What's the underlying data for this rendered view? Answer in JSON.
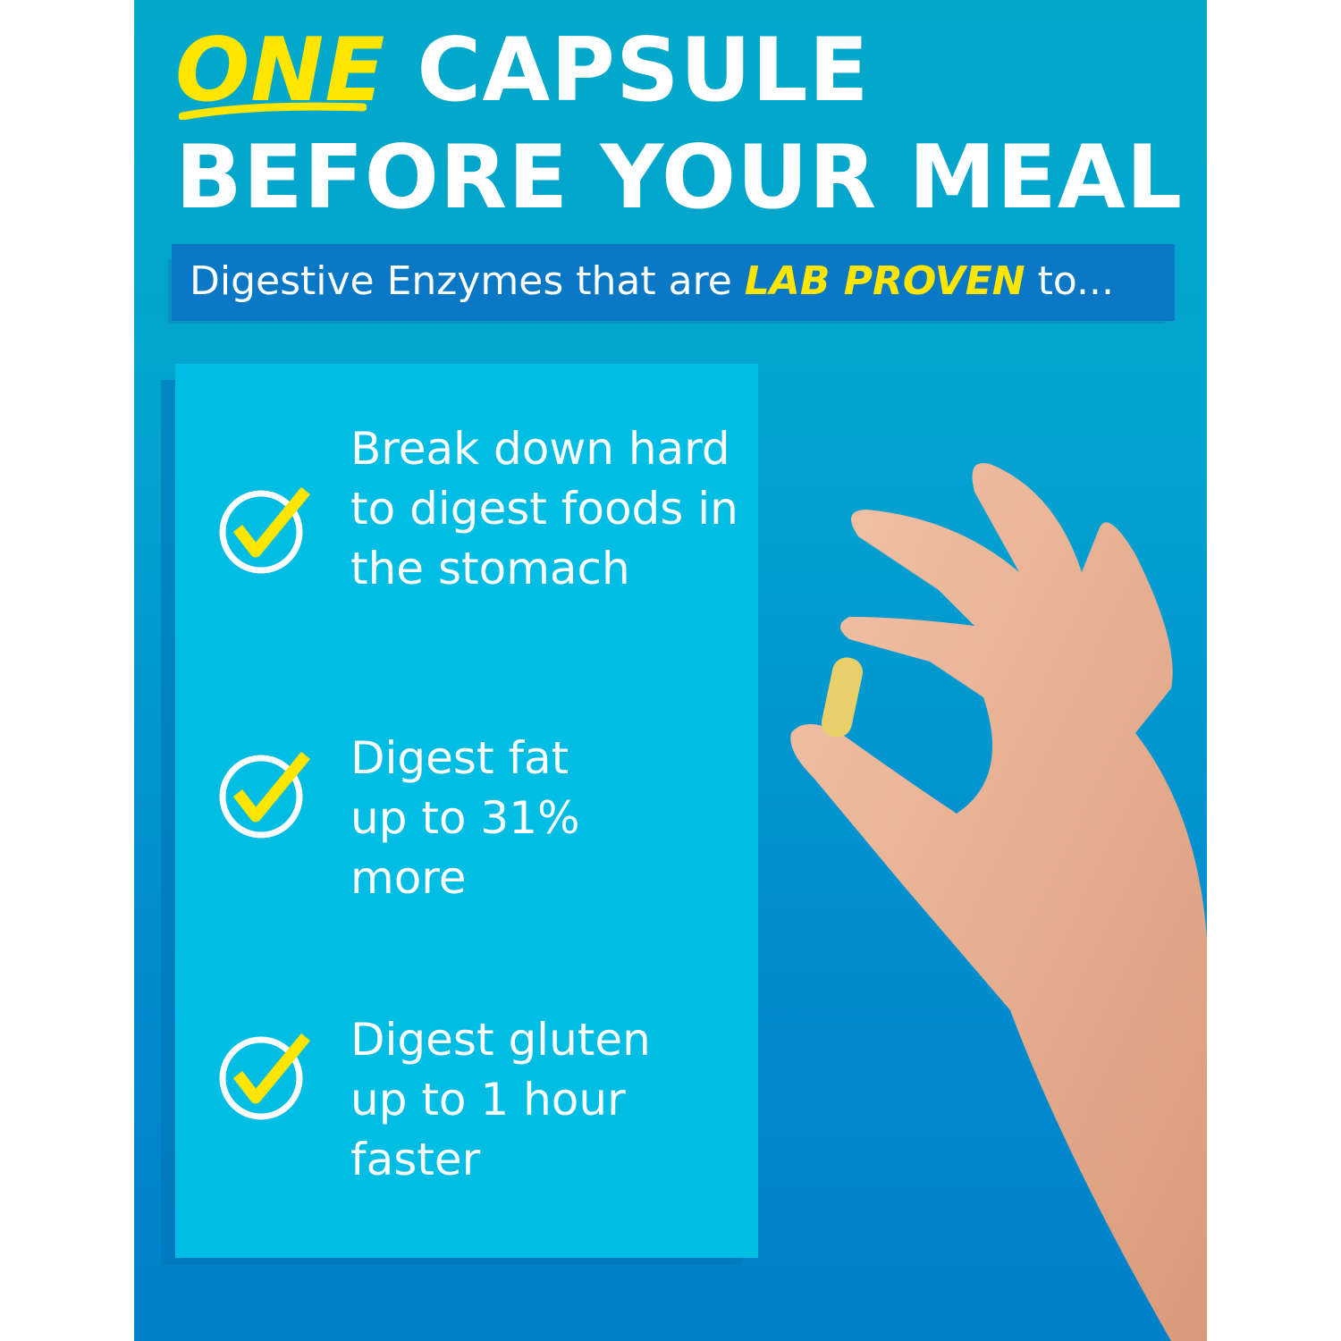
{
  "headline": {
    "highlight": "ONE",
    "line1_rest": "CAPSULE",
    "line2": "BEFORE YOUR MEAL"
  },
  "banner": {
    "prefix": "Digestive Enzymes that are",
    "emphasis": "LAB PROVEN",
    "suffix": "to..."
  },
  "benefits": [
    {
      "icon": "check-circle-icon",
      "text": "Break down hard to digest foods in the stomach"
    },
    {
      "icon": "check-circle-icon",
      "text": "Digest fat up to 31% more"
    },
    {
      "icon": "check-circle-icon",
      "text": "Digest gluten up to 1 hour faster"
    }
  ],
  "colors": {
    "accent_yellow": "#ffe600",
    "background_top": "#02a9c9",
    "background_bottom": "#0080c8",
    "banner": "#0a78c4",
    "box": "#00bde3"
  }
}
